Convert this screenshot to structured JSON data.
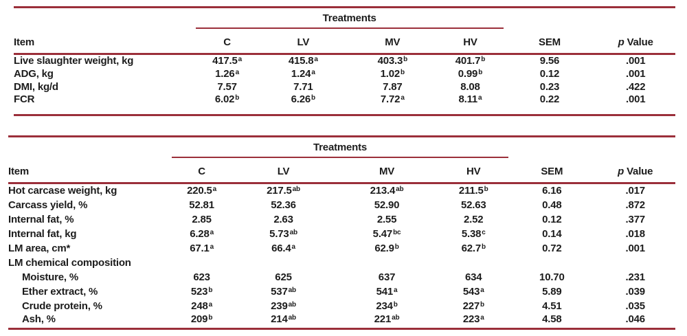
{
  "colors": {
    "rule": "#9b2f3a",
    "text": "#1c1c1c",
    "background": "#ffffff"
  },
  "tables": [
    {
      "span_header": "Treatments",
      "columns": [
        "Item",
        "C",
        "LV",
        "MV",
        "HV",
        "SEM"
      ],
      "p_header": {
        "italic": "p",
        "label": "Value"
      },
      "rows": [
        {
          "label": "Live slaughter weight, kg",
          "indent": false,
          "values": [
            {
              "v": "417.5",
              "sup": "a"
            },
            {
              "v": "415.8",
              "sup": "a"
            },
            {
              "v": "403.3",
              "sup": "b"
            },
            {
              "v": "401.7",
              "sup": "b"
            }
          ],
          "sem": "9.56",
          "p": ".001"
        },
        {
          "label": "ADG, kg",
          "indent": false,
          "values": [
            {
              "v": "1.26",
              "sup": "a"
            },
            {
              "v": "1.24",
              "sup": "a"
            },
            {
              "v": "1.02",
              "sup": "b"
            },
            {
              "v": "0.99",
              "sup": "b"
            }
          ],
          "sem": "0.12",
          "p": ".001"
        },
        {
          "label": "DMI, kg/d",
          "indent": false,
          "values": [
            {
              "v": "7.57",
              "sup": ""
            },
            {
              "v": "7.71",
              "sup": ""
            },
            {
              "v": "7.87",
              "sup": ""
            },
            {
              "v": "8.08",
              "sup": ""
            }
          ],
          "sem": "0.23",
          "p": ".422"
        },
        {
          "label": "FCR",
          "indent": false,
          "values": [
            {
              "v": "6.02",
              "sup": "b"
            },
            {
              "v": "6.26",
              "sup": "b"
            },
            {
              "v": "7.72",
              "sup": "a"
            },
            {
              "v": "8.11",
              "sup": "a"
            }
          ],
          "sem": "0.22",
          "p": ".001"
        }
      ]
    },
    {
      "span_header": "Treatments",
      "columns": [
        "Item",
        "C",
        "LV",
        "MV",
        "HV",
        "SEM"
      ],
      "p_header": {
        "italic": "p",
        "label": "Value"
      },
      "rows": [
        {
          "label": "Hot carcase weight, kg",
          "indent": false,
          "values": [
            {
              "v": "220.5",
              "sup": "a"
            },
            {
              "v": "217.5",
              "sup": "ab"
            },
            {
              "v": "213.4",
              "sup": "ab"
            },
            {
              "v": "211.5",
              "sup": "b"
            }
          ],
          "sem": "6.16",
          "p": ".017"
        },
        {
          "label": "Carcass yield, %",
          "indent": false,
          "values": [
            {
              "v": "52.81",
              "sup": ""
            },
            {
              "v": "52.36",
              "sup": ""
            },
            {
              "v": "52.90",
              "sup": ""
            },
            {
              "v": "52.63",
              "sup": ""
            }
          ],
          "sem": "0.48",
          "p": ".872"
        },
        {
          "label": "Internal fat, %",
          "indent": false,
          "values": [
            {
              "v": "2.85",
              "sup": ""
            },
            {
              "v": "2.63",
              "sup": ""
            },
            {
              "v": "2.55",
              "sup": ""
            },
            {
              "v": "2.52",
              "sup": ""
            }
          ],
          "sem": "0.12",
          "p": ".377"
        },
        {
          "label": "Internal fat, kg",
          "indent": false,
          "values": [
            {
              "v": "6.28",
              "sup": "a"
            },
            {
              "v": "5.73",
              "sup": "ab"
            },
            {
              "v": "5.47",
              "sup": "bc"
            },
            {
              "v": "5.38",
              "sup": "c"
            }
          ],
          "sem": "0.14",
          "p": ".018"
        },
        {
          "label": "LM area, cm*",
          "indent": false,
          "values": [
            {
              "v": "67.1",
              "sup": "a"
            },
            {
              "v": "66.4",
              "sup": "a"
            },
            {
              "v": "62.9",
              "sup": "b"
            },
            {
              "v": "62.7",
              "sup": "b"
            }
          ],
          "sem": "0.72",
          "p": ".001"
        },
        {
          "label": "LM chemical composition",
          "indent": false,
          "values": [],
          "sem": "",
          "p": ""
        },
        {
          "label": "Moisture, %",
          "indent": true,
          "values": [
            {
              "v": "623",
              "sup": ""
            },
            {
              "v": "625",
              "sup": ""
            },
            {
              "v": "637",
              "sup": ""
            },
            {
              "v": "634",
              "sup": ""
            }
          ],
          "sem": "10.70",
          "p": ".231"
        },
        {
          "label": "Ether extract, %",
          "indent": true,
          "values": [
            {
              "v": "523",
              "sup": "b"
            },
            {
              "v": "537",
              "sup": "ab"
            },
            {
              "v": "541",
              "sup": "a"
            },
            {
              "v": "543",
              "sup": "a"
            }
          ],
          "sem": "5.89",
          "p": ".039"
        },
        {
          "label": "Crude protein, %",
          "indent": true,
          "values": [
            {
              "v": "248",
              "sup": "a"
            },
            {
              "v": "239",
              "sup": "ab"
            },
            {
              "v": "234",
              "sup": "b"
            },
            {
              "v": "227",
              "sup": "b"
            }
          ],
          "sem": "4.51",
          "p": ".035"
        },
        {
          "label": "Ash, %",
          "indent": true,
          "values": [
            {
              "v": "209",
              "sup": "b"
            },
            {
              "v": "214",
              "sup": "ab"
            },
            {
              "v": "221",
              "sup": "ab"
            },
            {
              "v": "223",
              "sup": "a"
            }
          ],
          "sem": "4.58",
          "p": ".046"
        }
      ]
    }
  ]
}
